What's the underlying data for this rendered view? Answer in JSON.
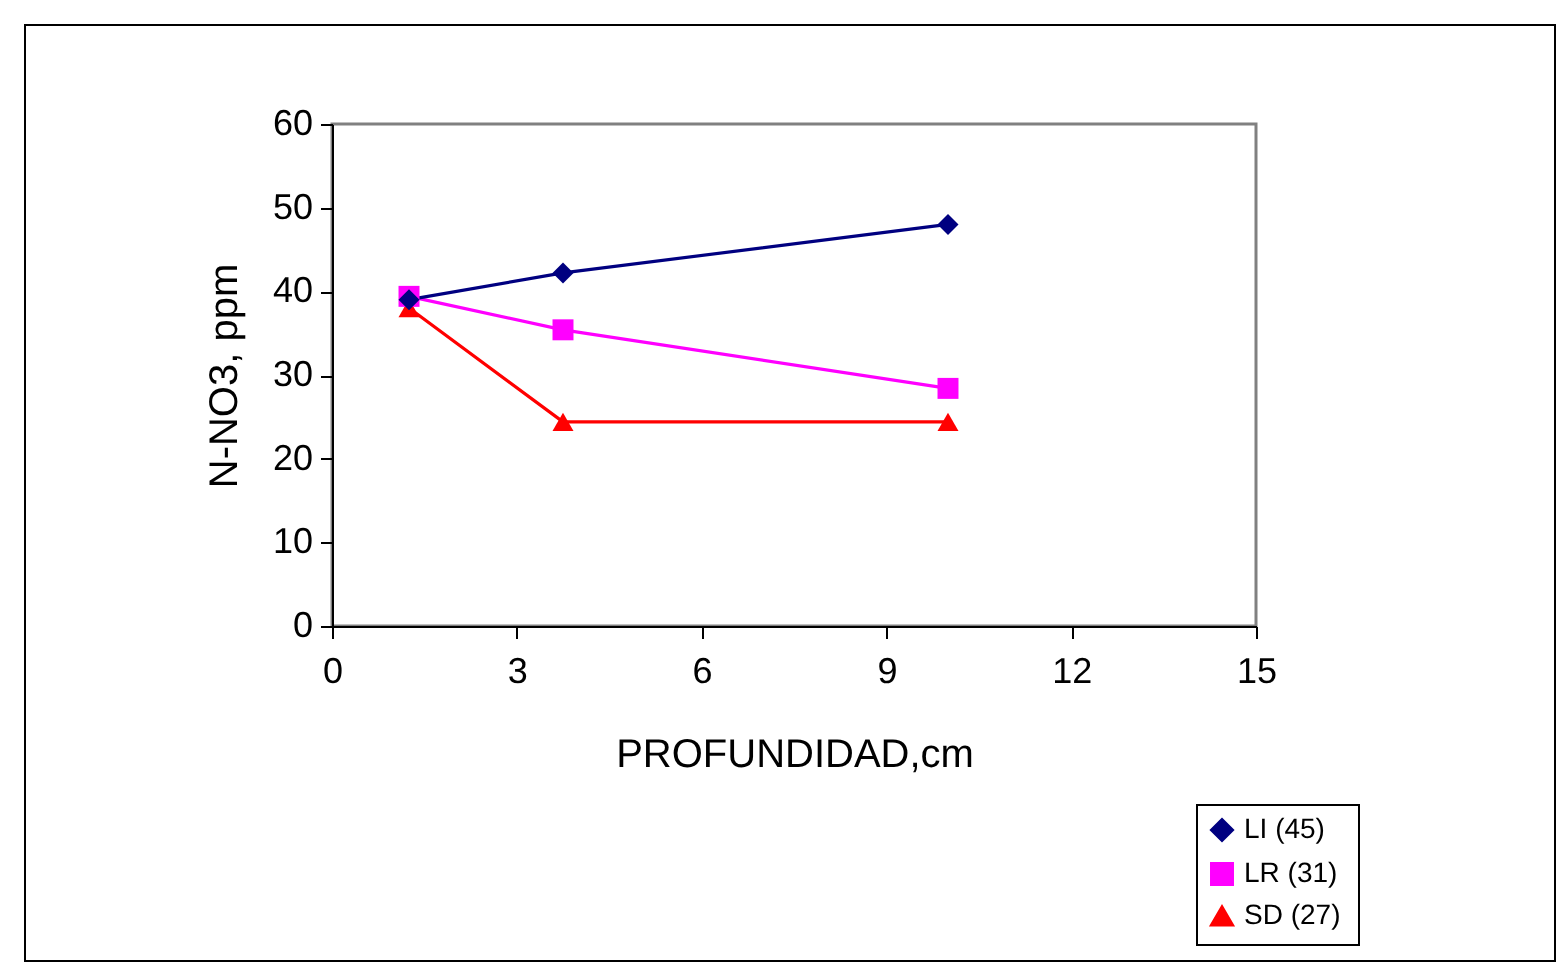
{
  "chart_data": {
    "type": "line",
    "xlabel": "PROFUNDIDAD,cm",
    "ylabel": "N-NO3, ppm",
    "x": [
      1.25,
      3.75,
      10
    ],
    "series": [
      {
        "name": "LI (45)",
        "color": "#000080",
        "marker": "diamond",
        "values": [
          39,
          42.2,
          48
        ]
      },
      {
        "name": "LR  (31)",
        "color": "#ff00ff",
        "marker": "square",
        "values": [
          39.4,
          35.4,
          28.4
        ]
      },
      {
        "name": "SD (27)",
        "color": "#ff0000",
        "marker": "triangle",
        "values": [
          38,
          24.4,
          24.4
        ]
      }
    ],
    "xlim": [
      0,
      15
    ],
    "xticks": [
      0,
      3,
      6,
      9,
      12,
      15
    ],
    "ylim": [
      0,
      60
    ],
    "yticks": [
      0,
      10,
      20,
      30,
      40,
      50,
      60
    ],
    "grid": false,
    "legend": "bottom right",
    "line_style": "solid"
  }
}
